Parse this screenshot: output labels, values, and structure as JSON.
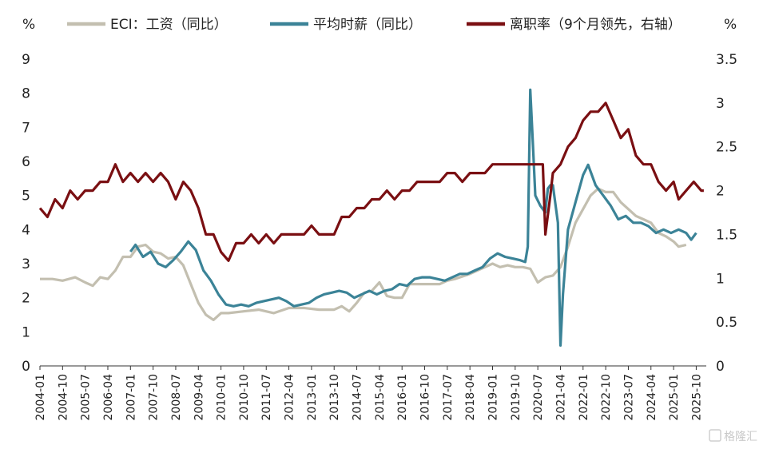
{
  "chart_data": {
    "type": "line",
    "left_unit": "%",
    "right_unit": "%",
    "left_axis": {
      "ylim": [
        0,
        9
      ],
      "ticks": [
        "0",
        "1",
        "2",
        "3",
        "4",
        "5",
        "6",
        "7",
        "8",
        "9"
      ]
    },
    "right_axis": {
      "ylim": [
        0,
        3.5
      ],
      "ticks": [
        "0",
        "0.5",
        "1",
        "1.5",
        "2",
        "2.5",
        "3",
        "3.5"
      ]
    },
    "x_ticks": [
      "2004-01",
      "2004-10",
      "2005-07",
      "2006-04",
      "2007-01",
      "2007-10",
      "2008-07",
      "2009-04",
      "2010-01",
      "2010-10",
      "2011-07",
      "2012-04",
      "2013-01",
      "2013-10",
      "2014-07",
      "2015-04",
      "2016-01",
      "2016-10",
      "2017-07",
      "2018-04",
      "2019-01",
      "2019-10",
      "2020-07",
      "2021-04",
      "2022-01",
      "2022-10",
      "2023-07",
      "2024-04",
      "2025-01",
      "2025-10"
    ],
    "legend": [
      {
        "name": "ECI：工资（同比）",
        "color": "#c3bfb0"
      },
      {
        "name": "平均时薪（同比）",
        "color": "#3b8397"
      },
      {
        "name": "离职率（9个月领先，右轴）",
        "color": "#7a0f12"
      }
    ],
    "series": [
      {
        "name": "ECI：工资（同比）",
        "axis": "left",
        "color": "#c3bfb0",
        "points": [
          [
            "2004-01",
            2.55
          ],
          [
            "2004-06",
            2.55
          ],
          [
            "2004-10",
            2.5
          ],
          [
            "2005-03",
            2.6
          ],
          [
            "2005-07",
            2.45
          ],
          [
            "2005-10",
            2.35
          ],
          [
            "2006-01",
            2.6
          ],
          [
            "2006-04",
            2.55
          ],
          [
            "2006-07",
            2.8
          ],
          [
            "2006-10",
            3.2
          ],
          [
            "2007-01",
            3.2
          ],
          [
            "2007-04",
            3.5
          ],
          [
            "2007-07",
            3.55
          ],
          [
            "2007-10",
            3.35
          ],
          [
            "2008-01",
            3.3
          ],
          [
            "2008-04",
            3.15
          ],
          [
            "2008-07",
            3.2
          ],
          [
            "2008-10",
            2.95
          ],
          [
            "2009-01",
            2.4
          ],
          [
            "2009-04",
            1.85
          ],
          [
            "2009-07",
            1.5
          ],
          [
            "2009-10",
            1.35
          ],
          [
            "2010-01",
            1.55
          ],
          [
            "2010-04",
            1.55
          ],
          [
            "2010-10",
            1.6
          ],
          [
            "2011-04",
            1.65
          ],
          [
            "2011-10",
            1.55
          ],
          [
            "2012-04",
            1.7
          ],
          [
            "2012-10",
            1.7
          ],
          [
            "2013-04",
            1.65
          ],
          [
            "2013-10",
            1.65
          ],
          [
            "2014-01",
            1.75
          ],
          [
            "2014-04",
            1.6
          ],
          [
            "2014-07",
            1.85
          ],
          [
            "2014-10",
            2.15
          ],
          [
            "2015-01",
            2.2
          ],
          [
            "2015-04",
            2.45
          ],
          [
            "2015-07",
            2.05
          ],
          [
            "2015-10",
            2.0
          ],
          [
            "2016-01",
            2.0
          ],
          [
            "2016-04",
            2.4
          ],
          [
            "2016-07",
            2.4
          ],
          [
            "2016-10",
            2.4
          ],
          [
            "2017-04",
            2.4
          ],
          [
            "2017-07",
            2.5
          ],
          [
            "2017-10",
            2.55
          ],
          [
            "2018-04",
            2.7
          ],
          [
            "2018-10",
            2.9
          ],
          [
            "2019-01",
            3.0
          ],
          [
            "2019-04",
            2.9
          ],
          [
            "2019-07",
            2.95
          ],
          [
            "2019-10",
            2.9
          ],
          [
            "2020-01",
            2.9
          ],
          [
            "2020-04",
            2.85
          ],
          [
            "2020-07",
            2.45
          ],
          [
            "2020-10",
            2.6
          ],
          [
            "2021-01",
            2.65
          ],
          [
            "2021-04",
            2.9
          ],
          [
            "2021-07",
            3.5
          ],
          [
            "2021-10",
            4.2
          ],
          [
            "2022-01",
            4.6
          ],
          [
            "2022-04",
            5.0
          ],
          [
            "2022-07",
            5.2
          ],
          [
            "2022-10",
            5.1
          ],
          [
            "2023-01",
            5.1
          ],
          [
            "2023-04",
            4.8
          ],
          [
            "2023-07",
            4.6
          ],
          [
            "2023-10",
            4.4
          ],
          [
            "2024-01",
            4.3
          ],
          [
            "2024-04",
            4.2
          ],
          [
            "2024-07",
            3.9
          ],
          [
            "2024-10",
            3.8
          ],
          [
            "2025-01",
            3.65
          ],
          [
            "2025-03",
            3.5
          ],
          [
            "2025-06",
            3.55
          ]
        ]
      },
      {
        "name": "平均时薪（同比）",
        "axis": "left",
        "color": "#3b8397",
        "points": [
          [
            "2007-01",
            3.35
          ],
          [
            "2007-03",
            3.55
          ],
          [
            "2007-06",
            3.2
          ],
          [
            "2007-09",
            3.35
          ],
          [
            "2007-12",
            3.0
          ],
          [
            "2008-03",
            2.9
          ],
          [
            "2008-06",
            3.1
          ],
          [
            "2008-09",
            3.35
          ],
          [
            "2008-12",
            3.65
          ],
          [
            "2009-03",
            3.4
          ],
          [
            "2009-06",
            2.8
          ],
          [
            "2009-09",
            2.5
          ],
          [
            "2009-12",
            2.1
          ],
          [
            "2010-03",
            1.8
          ],
          [
            "2010-06",
            1.75
          ],
          [
            "2010-09",
            1.8
          ],
          [
            "2010-12",
            1.75
          ],
          [
            "2011-03",
            1.85
          ],
          [
            "2011-06",
            1.9
          ],
          [
            "2011-09",
            1.95
          ],
          [
            "2011-12",
            2.0
          ],
          [
            "2012-03",
            1.9
          ],
          [
            "2012-06",
            1.75
          ],
          [
            "2012-09",
            1.8
          ],
          [
            "2012-12",
            1.85
          ],
          [
            "2013-03",
            2.0
          ],
          [
            "2013-06",
            2.1
          ],
          [
            "2013-09",
            2.15
          ],
          [
            "2013-12",
            2.2
          ],
          [
            "2014-03",
            2.15
          ],
          [
            "2014-06",
            2.0
          ],
          [
            "2014-09",
            2.1
          ],
          [
            "2014-12",
            2.2
          ],
          [
            "2015-03",
            2.1
          ],
          [
            "2015-06",
            2.2
          ],
          [
            "2015-09",
            2.25
          ],
          [
            "2015-12",
            2.4
          ],
          [
            "2016-03",
            2.35
          ],
          [
            "2016-06",
            2.55
          ],
          [
            "2016-09",
            2.6
          ],
          [
            "2016-12",
            2.6
          ],
          [
            "2017-03",
            2.55
          ],
          [
            "2017-06",
            2.5
          ],
          [
            "2017-09",
            2.6
          ],
          [
            "2017-12",
            2.7
          ],
          [
            "2018-03",
            2.7
          ],
          [
            "2018-06",
            2.8
          ],
          [
            "2018-09",
            2.9
          ],
          [
            "2018-12",
            3.15
          ],
          [
            "2019-03",
            3.3
          ],
          [
            "2019-06",
            3.2
          ],
          [
            "2019-09",
            3.15
          ],
          [
            "2019-12",
            3.1
          ],
          [
            "2020-02",
            3.05
          ],
          [
            "2020-03",
            3.5
          ],
          [
            "2020-04",
            8.1
          ],
          [
            "2020-05",
            6.6
          ],
          [
            "2020-06",
            5.0
          ],
          [
            "2020-08",
            4.7
          ],
          [
            "2020-10",
            4.5
          ],
          [
            "2020-11",
            5.2
          ],
          [
            "2020-12",
            5.3
          ],
          [
            "2021-01",
            5.3
          ],
          [
            "2021-03",
            4.2
          ],
          [
            "2021-04",
            0.6
          ],
          [
            "2021-05",
            2.1
          ],
          [
            "2021-07",
            4.0
          ],
          [
            "2021-10",
            4.8
          ],
          [
            "2022-01",
            5.6
          ],
          [
            "2022-03",
            5.9
          ],
          [
            "2022-06",
            5.3
          ],
          [
            "2022-09",
            5.0
          ],
          [
            "2022-12",
            4.7
          ],
          [
            "2023-03",
            4.3
          ],
          [
            "2023-06",
            4.4
          ],
          [
            "2023-09",
            4.2
          ],
          [
            "2023-12",
            4.2
          ],
          [
            "2024-03",
            4.1
          ],
          [
            "2024-06",
            3.9
          ],
          [
            "2024-09",
            4.0
          ],
          [
            "2024-12",
            3.9
          ],
          [
            "2025-03",
            4.0
          ],
          [
            "2025-06",
            3.9
          ],
          [
            "2025-08",
            3.7
          ],
          [
            "2025-10",
            3.9
          ]
        ]
      },
      {
        "name": "离职率（9个月领先，右轴）",
        "axis": "right",
        "color": "#7a0f12",
        "points": [
          [
            "2004-01",
            1.8
          ],
          [
            "2004-04",
            1.7
          ],
          [
            "2004-07",
            1.9
          ],
          [
            "2004-10",
            1.8
          ],
          [
            "2005-01",
            2.0
          ],
          [
            "2005-04",
            1.9
          ],
          [
            "2005-07",
            2.0
          ],
          [
            "2005-10",
            2.0
          ],
          [
            "2006-01",
            2.1
          ],
          [
            "2006-04",
            2.1
          ],
          [
            "2006-07",
            2.3
          ],
          [
            "2006-10",
            2.1
          ],
          [
            "2007-01",
            2.2
          ],
          [
            "2007-04",
            2.1
          ],
          [
            "2007-07",
            2.2
          ],
          [
            "2007-10",
            2.1
          ],
          [
            "2008-01",
            2.2
          ],
          [
            "2008-04",
            2.1
          ],
          [
            "2008-07",
            1.9
          ],
          [
            "2008-10",
            2.1
          ],
          [
            "2009-01",
            2.0
          ],
          [
            "2009-04",
            1.8
          ],
          [
            "2009-07",
            1.5
          ],
          [
            "2009-10",
            1.5
          ],
          [
            "2010-01",
            1.3
          ],
          [
            "2010-04",
            1.2
          ],
          [
            "2010-07",
            1.4
          ],
          [
            "2010-10",
            1.4
          ],
          [
            "2011-01",
            1.5
          ],
          [
            "2011-04",
            1.4
          ],
          [
            "2011-07",
            1.5
          ],
          [
            "2011-10",
            1.4
          ],
          [
            "2012-01",
            1.5
          ],
          [
            "2012-04",
            1.5
          ],
          [
            "2012-07",
            1.5
          ],
          [
            "2012-10",
            1.5
          ],
          [
            "2013-01",
            1.6
          ],
          [
            "2013-04",
            1.5
          ],
          [
            "2013-07",
            1.5
          ],
          [
            "2013-10",
            1.5
          ],
          [
            "2014-01",
            1.7
          ],
          [
            "2014-04",
            1.7
          ],
          [
            "2014-07",
            1.8
          ],
          [
            "2014-10",
            1.8
          ],
          [
            "2015-01",
            1.9
          ],
          [
            "2015-04",
            1.9
          ],
          [
            "2015-07",
            2.0
          ],
          [
            "2015-10",
            1.9
          ],
          [
            "2016-01",
            2.0
          ],
          [
            "2016-04",
            2.0
          ],
          [
            "2016-07",
            2.1
          ],
          [
            "2016-10",
            2.1
          ],
          [
            "2017-01",
            2.1
          ],
          [
            "2017-04",
            2.1
          ],
          [
            "2017-07",
            2.2
          ],
          [
            "2017-10",
            2.2
          ],
          [
            "2018-01",
            2.1
          ],
          [
            "2018-04",
            2.2
          ],
          [
            "2018-07",
            2.2
          ],
          [
            "2018-10",
            2.2
          ],
          [
            "2019-01",
            2.3
          ],
          [
            "2019-04",
            2.3
          ],
          [
            "2019-07",
            2.3
          ],
          [
            "2019-10",
            2.3
          ],
          [
            "2020-01",
            2.3
          ],
          [
            "2020-04",
            2.3
          ],
          [
            "2020-07",
            2.3
          ],
          [
            "2020-09",
            2.3
          ],
          [
            "2020-10",
            1.5
          ],
          [
            "2020-12",
            1.95
          ],
          [
            "2021-01",
            2.2
          ],
          [
            "2021-04",
            2.3
          ],
          [
            "2021-07",
            2.5
          ],
          [
            "2021-10",
            2.6
          ],
          [
            "2022-01",
            2.8
          ],
          [
            "2022-04",
            2.9
          ],
          [
            "2022-07",
            2.9
          ],
          [
            "2022-10",
            3.0
          ],
          [
            "2023-01",
            2.8
          ],
          [
            "2023-04",
            2.6
          ],
          [
            "2023-07",
            2.7
          ],
          [
            "2023-10",
            2.4
          ],
          [
            "2024-01",
            2.3
          ],
          [
            "2024-04",
            2.3
          ],
          [
            "2024-07",
            2.1
          ],
          [
            "2024-10",
            2.0
          ],
          [
            "2025-01",
            2.1
          ],
          [
            "2025-03",
            1.9
          ],
          [
            "2025-06",
            2.0
          ],
          [
            "2025-09",
            2.1
          ],
          [
            "2025-12",
            2.0
          ],
          [
            "2026-01",
            2.0
          ]
        ]
      }
    ],
    "watermark": "格隆汇"
  }
}
